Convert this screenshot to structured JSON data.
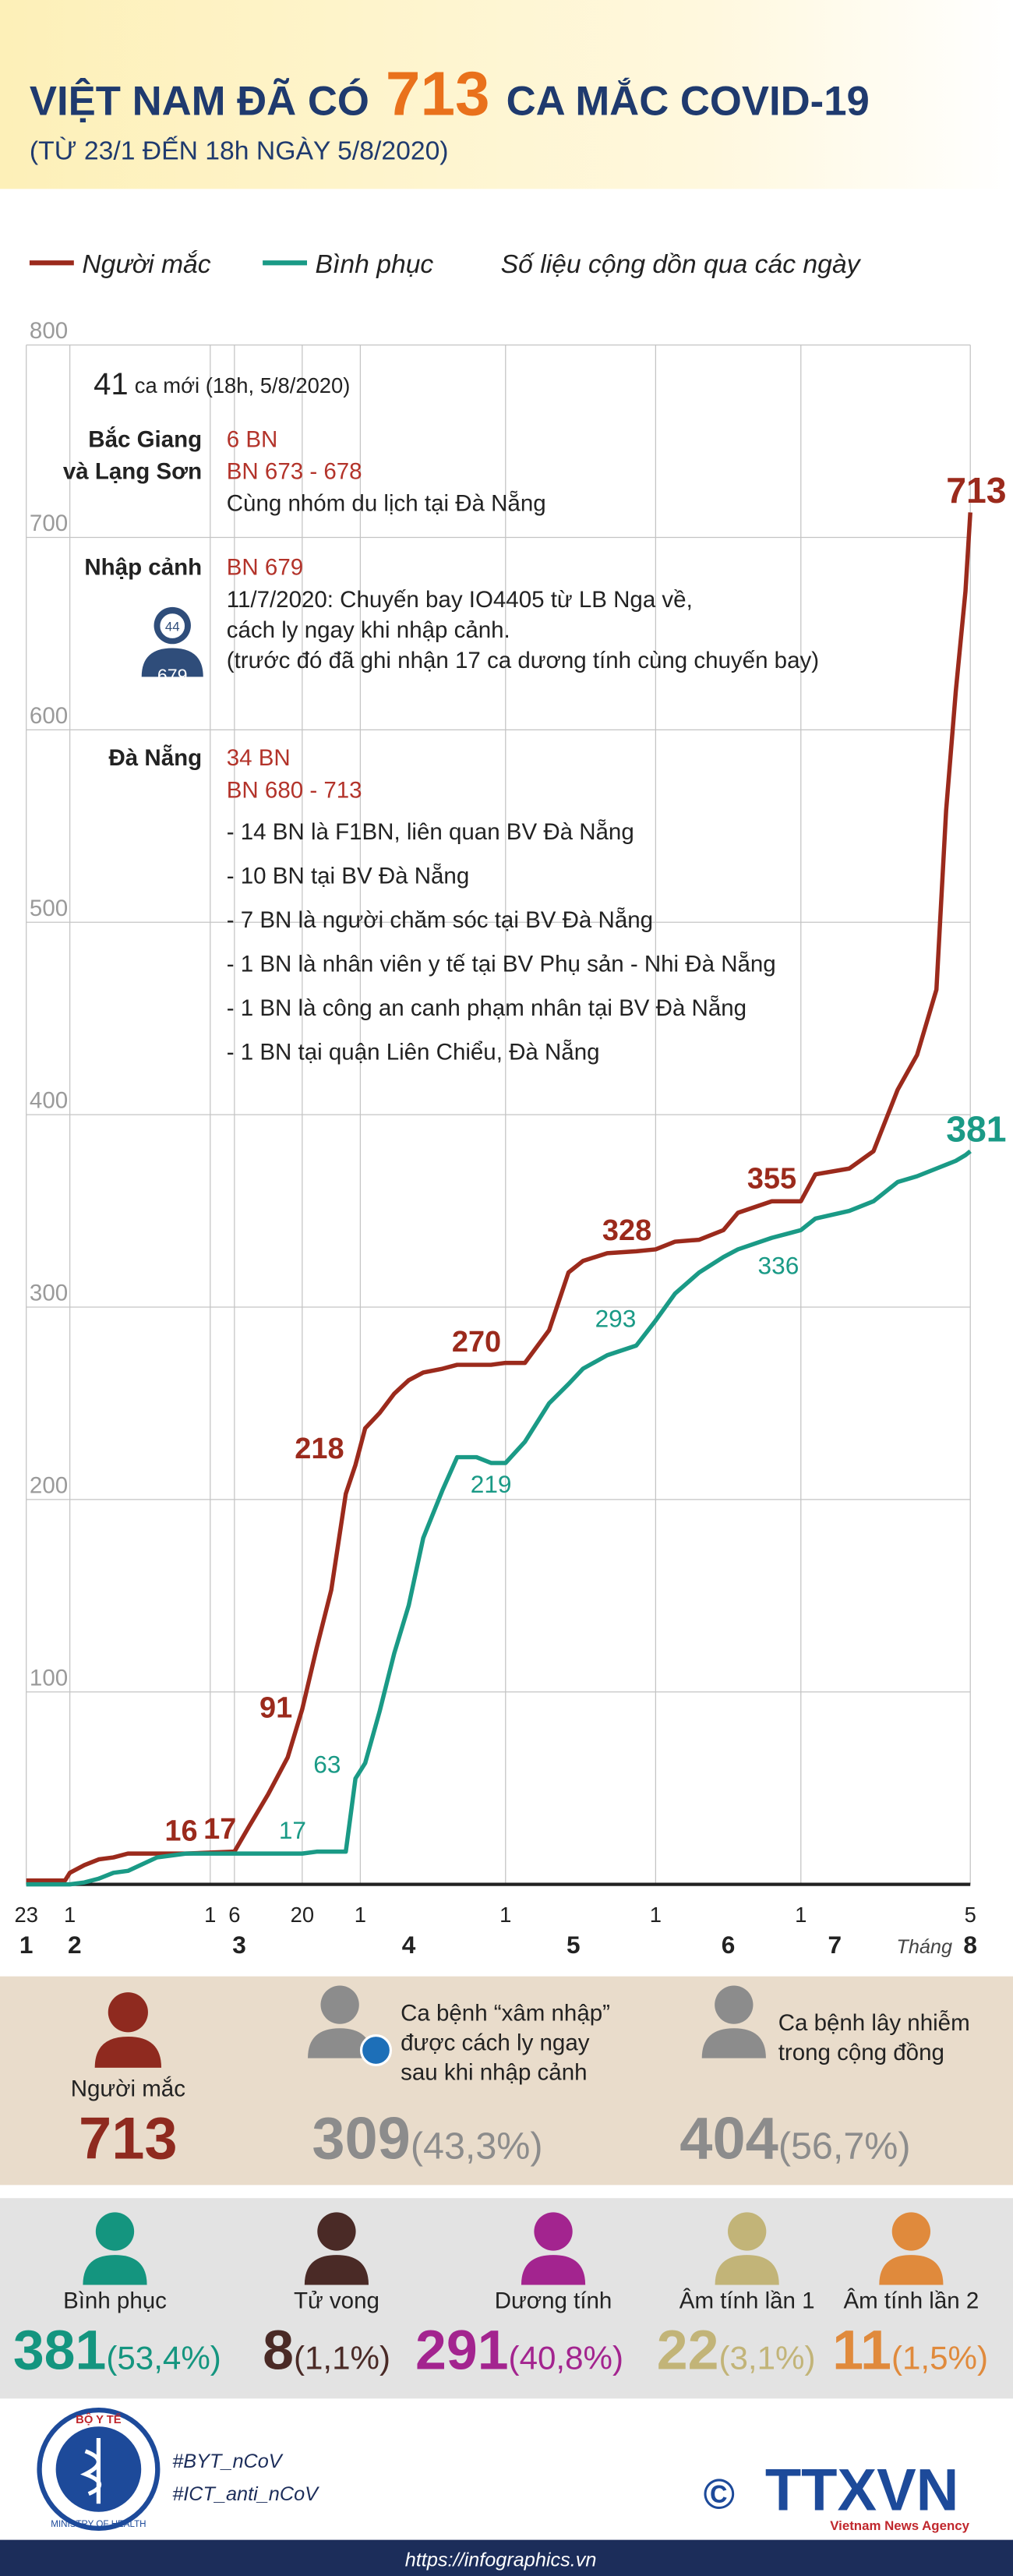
{
  "header": {
    "title_before": "VIỆT NAM ĐÃ CÓ",
    "title_number": "713",
    "title_after": "CA MẮC COVID-19",
    "subtitle": "(TỪ 23/1 ĐẾN 18h NGÀY 5/8/2020)"
  },
  "chart_data": {
    "type": "line",
    "note": "Số liệu cộng dồn qua các ngày",
    "x": [
      0,
      8,
      9,
      12,
      15,
      18,
      21,
      27,
      33,
      43,
      46,
      50,
      54,
      57,
      60,
      63,
      66,
      68,
      70,
      73,
      76,
      79,
      82,
      86,
      89,
      93,
      96,
      99,
      103,
      108,
      112,
      115,
      120,
      126,
      130,
      134,
      139,
      144,
      147,
      154,
      160,
      163,
      170,
      175,
      180,
      184,
      188,
      190,
      192,
      194,
      195
    ],
    "series": [
      {
        "name": "Người mắc",
        "color": "#9b2a1c",
        "values": [
          2,
          2,
          6,
          10,
          13,
          14,
          16,
          16,
          16,
          17,
          30,
          47,
          66,
          91,
          123,
          153,
          203,
          218,
          237,
          245,
          255,
          262,
          266,
          268,
          270,
          270,
          270,
          271,
          271,
          288,
          318,
          324,
          328,
          329,
          330,
          334,
          335,
          340,
          349,
          355,
          355,
          369,
          372,
          381,
          413,
          431,
          465,
          558,
          620,
          672,
          713
        ],
        "annotations": [
          {
            "x": 32,
            "value": 16
          },
          {
            "x": 40,
            "value": 17
          },
          {
            "x": 57,
            "value": 91
          },
          {
            "x": 67,
            "value": 218
          },
          {
            "x": 93,
            "value": 270
          },
          {
            "x": 120,
            "value": 328
          },
          {
            "x": 154,
            "value": 355
          },
          {
            "x": 195,
            "value": 713
          }
        ]
      },
      {
        "name": "Bình phục",
        "color": "#1a9a86",
        "values": [
          0,
          0,
          0,
          1,
          3,
          6,
          7,
          14,
          16,
          16,
          16,
          16,
          16,
          16,
          17,
          17,
          17,
          55,
          63,
          90,
          120,
          145,
          180,
          205,
          222,
          222,
          219,
          219,
          230,
          250,
          260,
          268,
          275,
          280,
          293,
          307,
          318,
          326,
          330,
          336,
          340,
          346,
          350,
          355,
          365,
          368,
          372,
          374,
          376,
          379,
          381
        ],
        "annotations": [
          {
            "x": 55,
            "value": 17
          },
          {
            "x": 66,
            "value": 63
          },
          {
            "x": 96,
            "value": 219
          },
          {
            "x": 128,
            "value": 293
          },
          {
            "x": 154,
            "value": 336
          },
          {
            "x": 195,
            "value": 381
          }
        ]
      }
    ],
    "xlim": [
      0,
      195
    ],
    "ylim": [
      0,
      800
    ],
    "xticks": [
      {
        "value": 0,
        "label": "23"
      },
      {
        "value": 9,
        "label": "1"
      },
      {
        "value": 38,
        "label": "1"
      },
      {
        "value": 43,
        "label": "6"
      },
      {
        "value": 57,
        "label": "20"
      },
      {
        "value": 69,
        "label": "1"
      },
      {
        "value": 99,
        "label": "1"
      },
      {
        "value": 130,
        "label": "1"
      },
      {
        "value": 160,
        "label": "1"
      },
      {
        "value": 195,
        "label": "5"
      }
    ],
    "month_ticks": [
      {
        "value": 0,
        "label": "1"
      },
      {
        "value": 10,
        "label": "2"
      },
      {
        "value": 44,
        "label": "3"
      },
      {
        "value": 79,
        "label": "4"
      },
      {
        "value": 113,
        "label": "5"
      },
      {
        "value": 145,
        "label": "6"
      },
      {
        "value": 167,
        "label": "7"
      },
      {
        "value": 195,
        "label": "8"
      }
    ],
    "month_axis_label": "Tháng",
    "yticks": [
      100,
      200,
      300,
      400,
      500,
      600,
      700,
      800
    ],
    "grid": true
  },
  "news": {
    "new_count": "41",
    "new_text": "ca mới (18h, 5/8/2020)",
    "groups": [
      {
        "place": [
          "Bắc Giang",
          "và Lạng Sơn"
        ],
        "highlight": [
          "6 BN",
          "BN 673 - 678"
        ],
        "details": [
          "Cùng nhóm du lịch tại Đà Nẵng"
        ]
      },
      {
        "place": [
          "Nhập cảnh"
        ],
        "highlight": [
          "BN 679"
        ],
        "details": [
          "11/7/2020: Chuyến bay IO4405 từ LB Nga về,",
          "cách ly ngay khi nhập cảnh.",
          "(trước đó đã ghi nhận 17 ca dương tính cùng chuyến bay)"
        ],
        "badge_top": "44",
        "badge_bottom": "679"
      },
      {
        "place": [
          "Đà Nẵng"
        ],
        "highlight": [
          "34 BN",
          "BN 680 - 713"
        ],
        "details": [
          "- 14 BN là F1BN, liên quan BV Đà Nẵng",
          "- 10 BN tại BV Đà Nẵng",
          "- 7 BN là người chăm sóc tại BV Đà Nẵng",
          "- 1 BN là nhân viên y tế tại BV Phụ sản - Nhi Đà Nẵng",
          "- 1 BN là công an canh phạm nhân tại BV Đà Nẵng",
          "- 1 BN tại quận Liên Chiểu, Đà Nẵng"
        ]
      }
    ]
  },
  "summary": {
    "total": {
      "label": "Người mắc",
      "value": 713
    },
    "imported": {
      "label": [
        "Ca bệnh “xâm nhập”",
        "được cách ly ngay",
        "sau khi nhập cảnh"
      ],
      "value": 309,
      "percent": "(43,3%)"
    },
    "community": {
      "label": [
        "Ca bệnh lây nhiễm",
        "trong cộng đồng"
      ],
      "value": 404,
      "percent": "(56,7%)"
    }
  },
  "outcomes": [
    {
      "label": "Bình phục",
      "value": 381,
      "percent": "(53,4%)",
      "color": "#14957f"
    },
    {
      "label": "Tử vong",
      "value": 8,
      "percent": "(1,1%)",
      "color": "#4a2a26"
    },
    {
      "label": "Dương tính",
      "value": 291,
      "percent": "(40,8%)",
      "color": "#a3248f"
    },
    {
      "label": "Âm tính lần 1",
      "value": 22,
      "percent": "(3,1%)",
      "color": "#c2b478"
    },
    {
      "label": "Âm tính lần 2",
      "value": 11,
      "percent": "(1,5%)",
      "color": "#e08a3c"
    }
  ],
  "footer": {
    "moh_top": "BỘ Y TẾ",
    "moh_bottom": "MINISTRY OF HEALTH",
    "hashtags": [
      "#BYT_nCoV",
      "#ICT_anti_nCoV"
    ],
    "copyright": "©",
    "agency": "TTXVN",
    "agency_sub": "Vietnam News Agency",
    "url": "https://infographics.vn"
  }
}
